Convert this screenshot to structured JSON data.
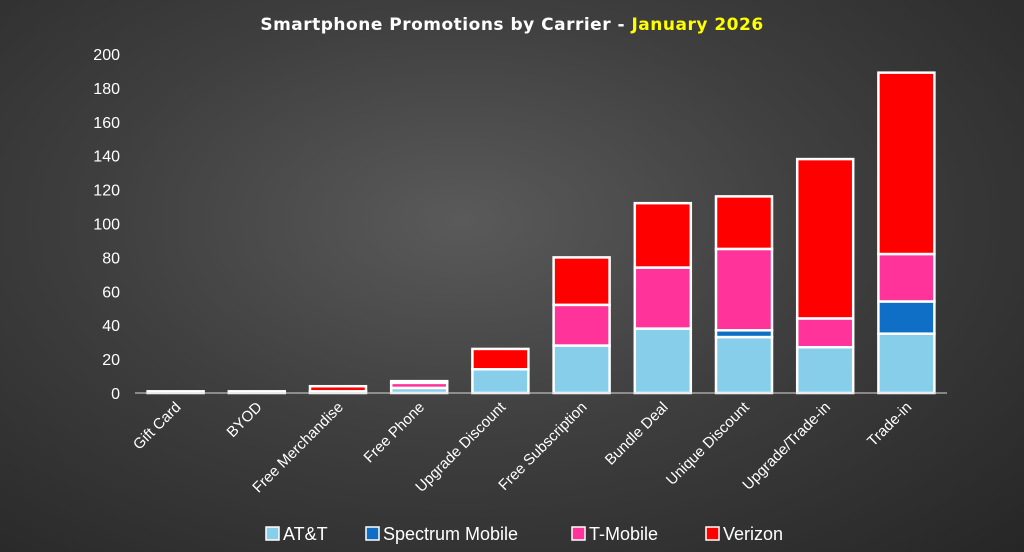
{
  "chart_data": {
    "type": "bar",
    "stacked": true,
    "title": "Smartphone Promotions by Carrier - ",
    "title_highlight": "January 2026",
    "categories": [
      "Gift Card",
      "BYOD",
      "Free Merchandise",
      "Free Phone",
      "Upgrade Discount",
      "Free Subscription",
      "Bundle Deal",
      "Unique Discount",
      "Upgrade/Trade-in",
      "Trade-in"
    ],
    "series": [
      {
        "name": "AT&T",
        "color": "#87ceeb",
        "values": [
          0,
          0,
          0,
          3,
          14,
          28,
          38,
          33,
          27,
          35
        ]
      },
      {
        "name": "Spectrum Mobile",
        "color": "#0f6fc6",
        "values": [
          0,
          0,
          0,
          0,
          0,
          0,
          0,
          4,
          0,
          19
        ]
      },
      {
        "name": "T-Mobile",
        "color": "#ff3399",
        "values": [
          0,
          0,
          1,
          3,
          0,
          24,
          36,
          48,
          17,
          28
        ]
      },
      {
        "name": "Verizon",
        "color": "#ff0000",
        "values": [
          1,
          1,
          3,
          1,
          12,
          28,
          38,
          31,
          94,
          107
        ]
      }
    ],
    "ylim": [
      0,
      200
    ],
    "yticks": [
      0,
      20,
      40,
      60,
      80,
      100,
      120,
      140,
      160,
      180,
      200
    ],
    "grid": false,
    "legend": "bottom"
  }
}
